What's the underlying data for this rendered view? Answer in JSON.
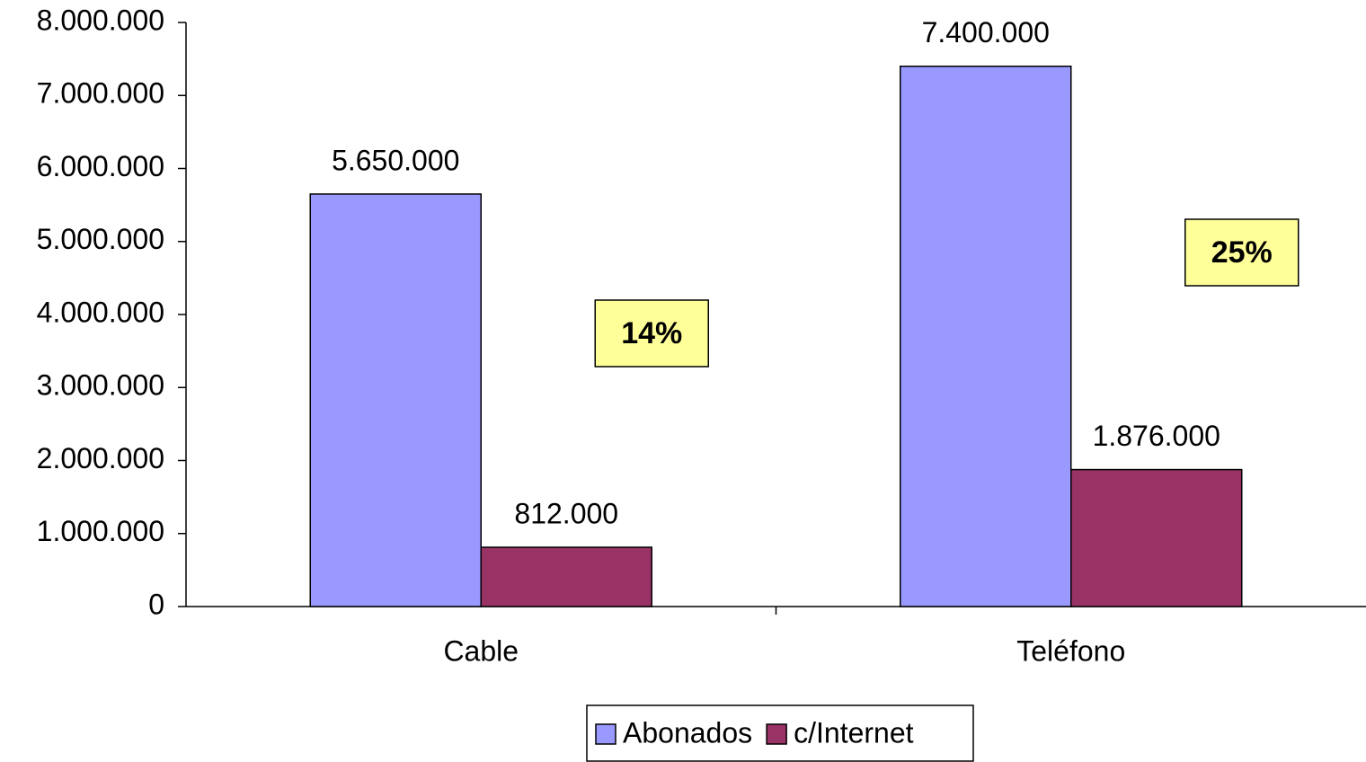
{
  "chart_data": {
    "type": "bar",
    "categories": [
      "Cable",
      "Teléfono"
    ],
    "series": [
      {
        "name": "Abonados",
        "color": "#9999ff",
        "values": [
          5650000,
          7400000
        ],
        "value_labels": [
          "5.650.000",
          "7.400.000"
        ]
      },
      {
        "name": "c/Internet",
        "color": "#993366",
        "values": [
          812000,
          1876000
        ],
        "value_labels": [
          "812.000",
          "1.876.000"
        ]
      }
    ],
    "ylim": [
      0,
      8000000
    ],
    "yticks": [
      0,
      {
        "value": 1000000,
        "label": "1.000.000"
      },
      {
        "value": 2000000,
        "label": "2.000.000"
      },
      {
        "value": 3000000,
        "label": "3.000.000"
      },
      {
        "value": 4000000,
        "label": "4.000.000"
      },
      {
        "value": 5000000,
        "label": "5.000.000"
      },
      {
        "value": 6000000,
        "label": "6.000.000"
      },
      {
        "value": 7000000,
        "label": "7.000.000"
      },
      {
        "value": 8000000,
        "label": "8.000.000"
      }
    ],
    "annotations": [
      "14%",
      "25%"
    ],
    "legend": "bottom",
    "grid": false
  }
}
